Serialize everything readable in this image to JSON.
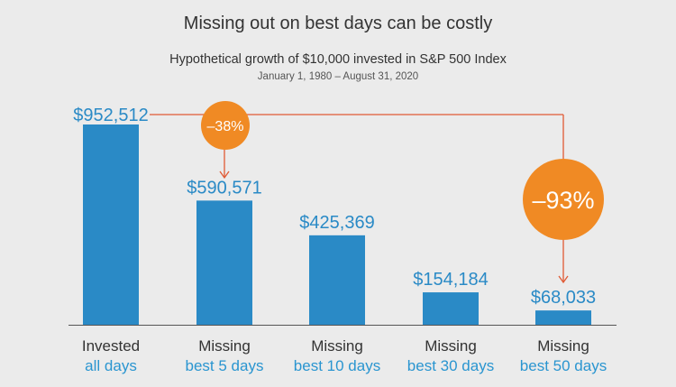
{
  "chart_data": {
    "type": "bar",
    "title": "Missing out on best days can be costly",
    "subtitle": "Hypothetical growth of $10,000 invested in S&P 500 Index",
    "date_range": "January 1, 1980 – August 31, 2020",
    "categories": [
      {
        "line1": "Invested",
        "line2": "all days"
      },
      {
        "line1": "Missing",
        "line2": "best 5 days"
      },
      {
        "line1": "Missing",
        "line2": "best 10 days"
      },
      {
        "line1": "Missing",
        "line2": "best 30 days"
      },
      {
        "line1": "Missing",
        "line2": "best 50 days"
      }
    ],
    "values": [
      952512,
      590571,
      425369,
      154184,
      68033
    ],
    "value_labels": [
      "$952,512",
      "$590,571",
      "$425,369",
      "$154,184",
      "$68,033"
    ],
    "annotations": [
      {
        "label": "–38%",
        "from_bar": 0,
        "to_bar": 1
      },
      {
        "label": "–93%",
        "from_bar": 0,
        "to_bar": 4
      }
    ],
    "ylim": [
      0,
      952512
    ],
    "grid": false,
    "legend": "none"
  },
  "colors": {
    "bar": "#2a8ac6",
    "value_text": "#2a8ac6",
    "category_line1": "#333333",
    "category_line2": "#2a95d0",
    "annotation": "#f08a24",
    "connector": "#e05a35",
    "axis": "#555555"
  }
}
